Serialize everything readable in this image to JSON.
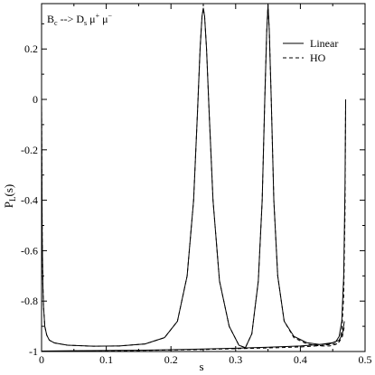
{
  "chart_data": {
    "type": "line",
    "annotation": {
      "parts": [
        "B",
        "c",
        " --> D",
        "s",
        " μ",
        "+",
        " μ",
        "−"
      ],
      "roles": [
        "base",
        "sub",
        "base",
        "sub",
        "base",
        "sup",
        "base",
        "sup"
      ]
    },
    "xlabel": "s",
    "ylabel": {
      "base": "P",
      "sub": "L",
      "rest": "(s)"
    },
    "xlim": [
      0,
      0.5
    ],
    "ylim": [
      -1.0,
      0.38
    ],
    "x_ticks": [
      0,
      0.1,
      0.2,
      0.3,
      0.4,
      0.5
    ],
    "x_tick_labels": [
      "0",
      "0.1",
      "0.2",
      "0.3",
      "0.4",
      "0.5"
    ],
    "y_ticks": [
      0.2,
      0,
      -0.2,
      -0.4,
      -0.6,
      -0.8,
      -1
    ],
    "y_tick_labels": [
      "0.2",
      "0",
      "-0.2",
      "-0.4",
      "-0.6",
      "-0.8",
      "-1"
    ],
    "grid": false,
    "legend": {
      "position": "top-right",
      "entries": [
        "Linear",
        "HO"
      ]
    },
    "series": [
      {
        "name": "Linear",
        "style": "solid",
        "x": [
          0.0,
          0.0005,
          0.001,
          0.002,
          0.003,
          0.005,
          0.008,
          0.012,
          0.02,
          0.04,
          0.08,
          0.12,
          0.16,
          0.19,
          0.21,
          0.225,
          0.235,
          0.241,
          0.245,
          0.248,
          0.25,
          0.252,
          0.255,
          0.259,
          0.265,
          0.275,
          0.29,
          0.305,
          0.315,
          0.325,
          0.335,
          0.341,
          0.345,
          0.348,
          0.35,
          0.352,
          0.355,
          0.359,
          0.365,
          0.375,
          0.39,
          0.41,
          0.43,
          0.445,
          0.455,
          0.46,
          0.464,
          0.467,
          0.469,
          0.47
        ],
        "y": [
          0.0,
          -0.3,
          -0.55,
          -0.73,
          -0.82,
          -0.9,
          -0.935,
          -0.955,
          -0.966,
          -0.975,
          -0.979,
          -0.978,
          -0.97,
          -0.945,
          -0.88,
          -0.7,
          -0.4,
          -0.05,
          0.2,
          0.33,
          0.362,
          0.33,
          0.2,
          -0.05,
          -0.4,
          -0.72,
          -0.9,
          -0.975,
          -0.985,
          -0.93,
          -0.72,
          -0.4,
          0.0,
          0.27,
          0.375,
          0.27,
          0.0,
          -0.4,
          -0.7,
          -0.88,
          -0.94,
          -0.965,
          -0.972,
          -0.97,
          -0.96,
          -0.94,
          -0.88,
          -0.7,
          -0.35,
          0.0
        ]
      },
      {
        "name": "HO",
        "style": "dashed",
        "x": [
          0.0,
          0.0005,
          0.001,
          0.002,
          0.003,
          0.005,
          0.008,
          0.012,
          0.02,
          0.04,
          0.08,
          0.12,
          0.16,
          0.19,
          0.21,
          0.225,
          0.235,
          0.241,
          0.245,
          0.248,
          0.25,
          0.252,
          0.255,
          0.259,
          0.265,
          0.275,
          0.29,
          0.305,
          0.315,
          0.325,
          0.335,
          0.341,
          0.345,
          0.348,
          0.35,
          0.352,
          0.355,
          0.359,
          0.365,
          0.375,
          0.39,
          0.41,
          0.43,
          0.445,
          0.455,
          0.46,
          0.464,
          0.467,
          0.469,
          0.47
        ],
        "y": [
          0.0,
          -0.3,
          -0.55,
          -0.73,
          -0.82,
          -0.9,
          -0.935,
          -0.955,
          -0.966,
          -0.975,
          -0.979,
          -0.978,
          -0.97,
          -0.945,
          -0.88,
          -0.7,
          -0.4,
          -0.05,
          0.2,
          0.33,
          0.362,
          0.33,
          0.2,
          -0.05,
          -0.4,
          -0.72,
          -0.9,
          -0.975,
          -0.985,
          -0.93,
          -0.72,
          -0.4,
          0.0,
          0.27,
          0.375,
          0.27,
          0.0,
          -0.4,
          -0.7,
          -0.88,
          -0.945,
          -0.97,
          -0.978,
          -0.978,
          -0.972,
          -0.96,
          -0.92,
          -0.78,
          -0.45,
          0.0
        ]
      },
      {
        "name": "",
        "style": "solid",
        "x": [
          0.0,
          0.05,
          0.1,
          0.15,
          0.2,
          0.25,
          0.3,
          0.35,
          0.4,
          0.43,
          0.45,
          0.46,
          0.465,
          0.468
        ],
        "y": [
          -0.998,
          -0.997,
          -0.996,
          -0.995,
          -0.993,
          -0.99,
          -0.987,
          -0.983,
          -0.978,
          -0.972,
          -0.965,
          -0.955,
          -0.93,
          -0.88
        ]
      },
      {
        "name": "",
        "style": "dashed",
        "x": [
          0.0,
          0.05,
          0.1,
          0.15,
          0.2,
          0.25,
          0.3,
          0.35,
          0.4,
          0.43,
          0.45,
          0.46,
          0.465,
          0.468
        ],
        "y": [
          -0.999,
          -0.998,
          -0.997,
          -0.996,
          -0.994,
          -0.992,
          -0.989,
          -0.986,
          -0.982,
          -0.977,
          -0.971,
          -0.962,
          -0.94,
          -0.9
        ]
      }
    ]
  }
}
